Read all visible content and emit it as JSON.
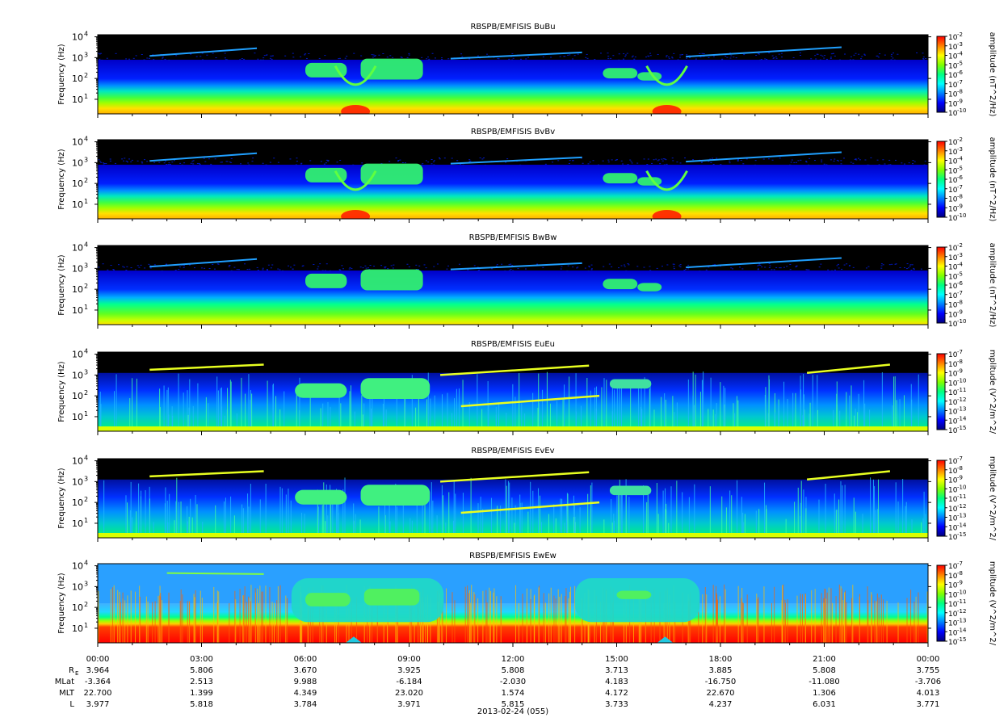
{
  "chart_data": {
    "type": "heatmap",
    "panels": [
      {
        "title": "RBSPB/EMFISIS  BuBu",
        "ylabel": "Frequency (Hz)",
        "cbar_label": "amplitude (nT^2/Hz)",
        "cbar_ticks": [
          "10",
          "10",
          "10",
          "10",
          "10",
          "10",
          "10",
          "10",
          "10"
        ],
        "cbar_exps": [
          "-2",
          "-3",
          "-4",
          "-5",
          "-6",
          "-7",
          "-8",
          "-9",
          "-10"
        ],
        "cbar_range": [
          -10,
          -2
        ],
        "background": "#000000",
        "style": "b"
      },
      {
        "title": "RBSPB/EMFISIS  BvBv",
        "ylabel": "Frequency (Hz)",
        "cbar_label": "amplitude (nT^2/Hz)",
        "cbar_ticks": [
          "10",
          "10",
          "10",
          "10",
          "10",
          "10",
          "10",
          "10",
          "10"
        ],
        "cbar_exps": [
          "-2",
          "-3",
          "-4",
          "-5",
          "-6",
          "-7",
          "-8",
          "-9",
          "-10"
        ],
        "cbar_range": [
          -10,
          -2
        ],
        "background": "#000000",
        "style": "b"
      },
      {
        "title": "RBSPB/EMFISIS  BwBw",
        "ylabel": "Frequency (Hz)",
        "cbar_label": "amplitude (nT^2/Hz)",
        "cbar_ticks": [
          "10",
          "10",
          "10",
          "10",
          "10",
          "10",
          "10",
          "10",
          "10"
        ],
        "cbar_exps": [
          "-2",
          "-3",
          "-4",
          "-5",
          "-6",
          "-7",
          "-8",
          "-9",
          "-10"
        ],
        "cbar_range": [
          -10,
          -2
        ],
        "background": "#000000",
        "style": "bw"
      },
      {
        "title": "RBSPB/EMFISIS  EuEu",
        "ylabel": "Frequency (Hz)",
        "cbar_label": "mplitude (V^2/m^2/",
        "cbar_ticks": [
          "10",
          "10",
          "10",
          "10",
          "10",
          "10",
          "10",
          "10",
          "10"
        ],
        "cbar_exps": [
          "-7",
          "-8",
          "-9",
          "-10",
          "-11",
          "-12",
          "-13",
          "-14",
          "-15"
        ],
        "cbar_range": [
          -15,
          -7
        ],
        "background": "#000000",
        "style": "e"
      },
      {
        "title": "RBSPB/EMFISIS  EvEv",
        "ylabel": "Frequency (Hz)",
        "cbar_label": "mplitude (V^2/m^2/",
        "cbar_ticks": [
          "10",
          "10",
          "10",
          "10",
          "10",
          "10",
          "10",
          "10",
          "10"
        ],
        "cbar_exps": [
          "-7",
          "-8",
          "-9",
          "-10",
          "-11",
          "-12",
          "-13",
          "-14",
          "-15"
        ],
        "cbar_range": [
          -15,
          -7
        ],
        "background": "#000000",
        "style": "e"
      },
      {
        "title": "RBSPB/EMFISIS  EwEw",
        "ylabel": "Frequency (Hz)",
        "cbar_label": "mplitude (V^2/m^2/",
        "cbar_ticks": [
          "10",
          "10",
          "10",
          "10",
          "10",
          "10",
          "10",
          "10",
          "10"
        ],
        "cbar_exps": [
          "-7",
          "-8",
          "-9",
          "-10",
          "-11",
          "-12",
          "-13",
          "-14",
          "-15"
        ],
        "cbar_range": [
          -15,
          -7
        ],
        "background": "#2aa0ff",
        "style": "ew"
      }
    ],
    "y_ticks": [
      {
        "base": "10",
        "exp": "4",
        "log": 4
      },
      {
        "base": "10",
        "exp": "3",
        "log": 3
      },
      {
        "base": "10",
        "exp": "2",
        "log": 2
      },
      {
        "base": "10",
        "exp": "1",
        "log": 1
      }
    ],
    "y_log_range": [
      0.3,
      4.1
    ],
    "x_ticks": [
      "00:00",
      "03:00",
      "06:00",
      "09:00",
      "12:00",
      "15:00",
      "18:00",
      "21:00",
      "00:00"
    ],
    "x_hours": [
      0,
      3,
      6,
      9,
      12,
      15,
      18,
      21,
      24
    ],
    "x_range_hours": [
      0,
      24
    ],
    "ephemeris": {
      "labels": [
        {
          "main": "R",
          "sub": "E"
        },
        {
          "main": "MLat",
          "sub": ""
        },
        {
          "main": "MLT",
          "sub": ""
        },
        {
          "main": "L",
          "sub": ""
        }
      ],
      "rows": [
        [
          "3.964",
          "5.806",
          "3.670",
          "3.925",
          "5.808",
          "3.713",
          "3.885",
          "5.808",
          "3.755"
        ],
        [
          "-3.364",
          "2.513",
          "9.988",
          "-6.184",
          "-2.030",
          "4.183",
          "-16.750",
          "-11.080",
          "-3.706"
        ],
        [
          "22.700",
          "1.399",
          "4.349",
          "23.020",
          "1.574",
          "4.172",
          "22.670",
          "1.306",
          "4.013"
        ],
        [
          "3.977",
          "5.818",
          "3.784",
          "3.971",
          "5.815",
          "3.733",
          "4.237",
          "6.031",
          "3.771"
        ]
      ]
    },
    "date_label": "2013-02-24 (055)",
    "colormap": [
      "#00007f",
      "#0000ff",
      "#0080ff",
      "#00ffff",
      "#00ff80",
      "#80ff00",
      "#ffff00",
      "#ff8000",
      "#ff0000"
    ]
  }
}
